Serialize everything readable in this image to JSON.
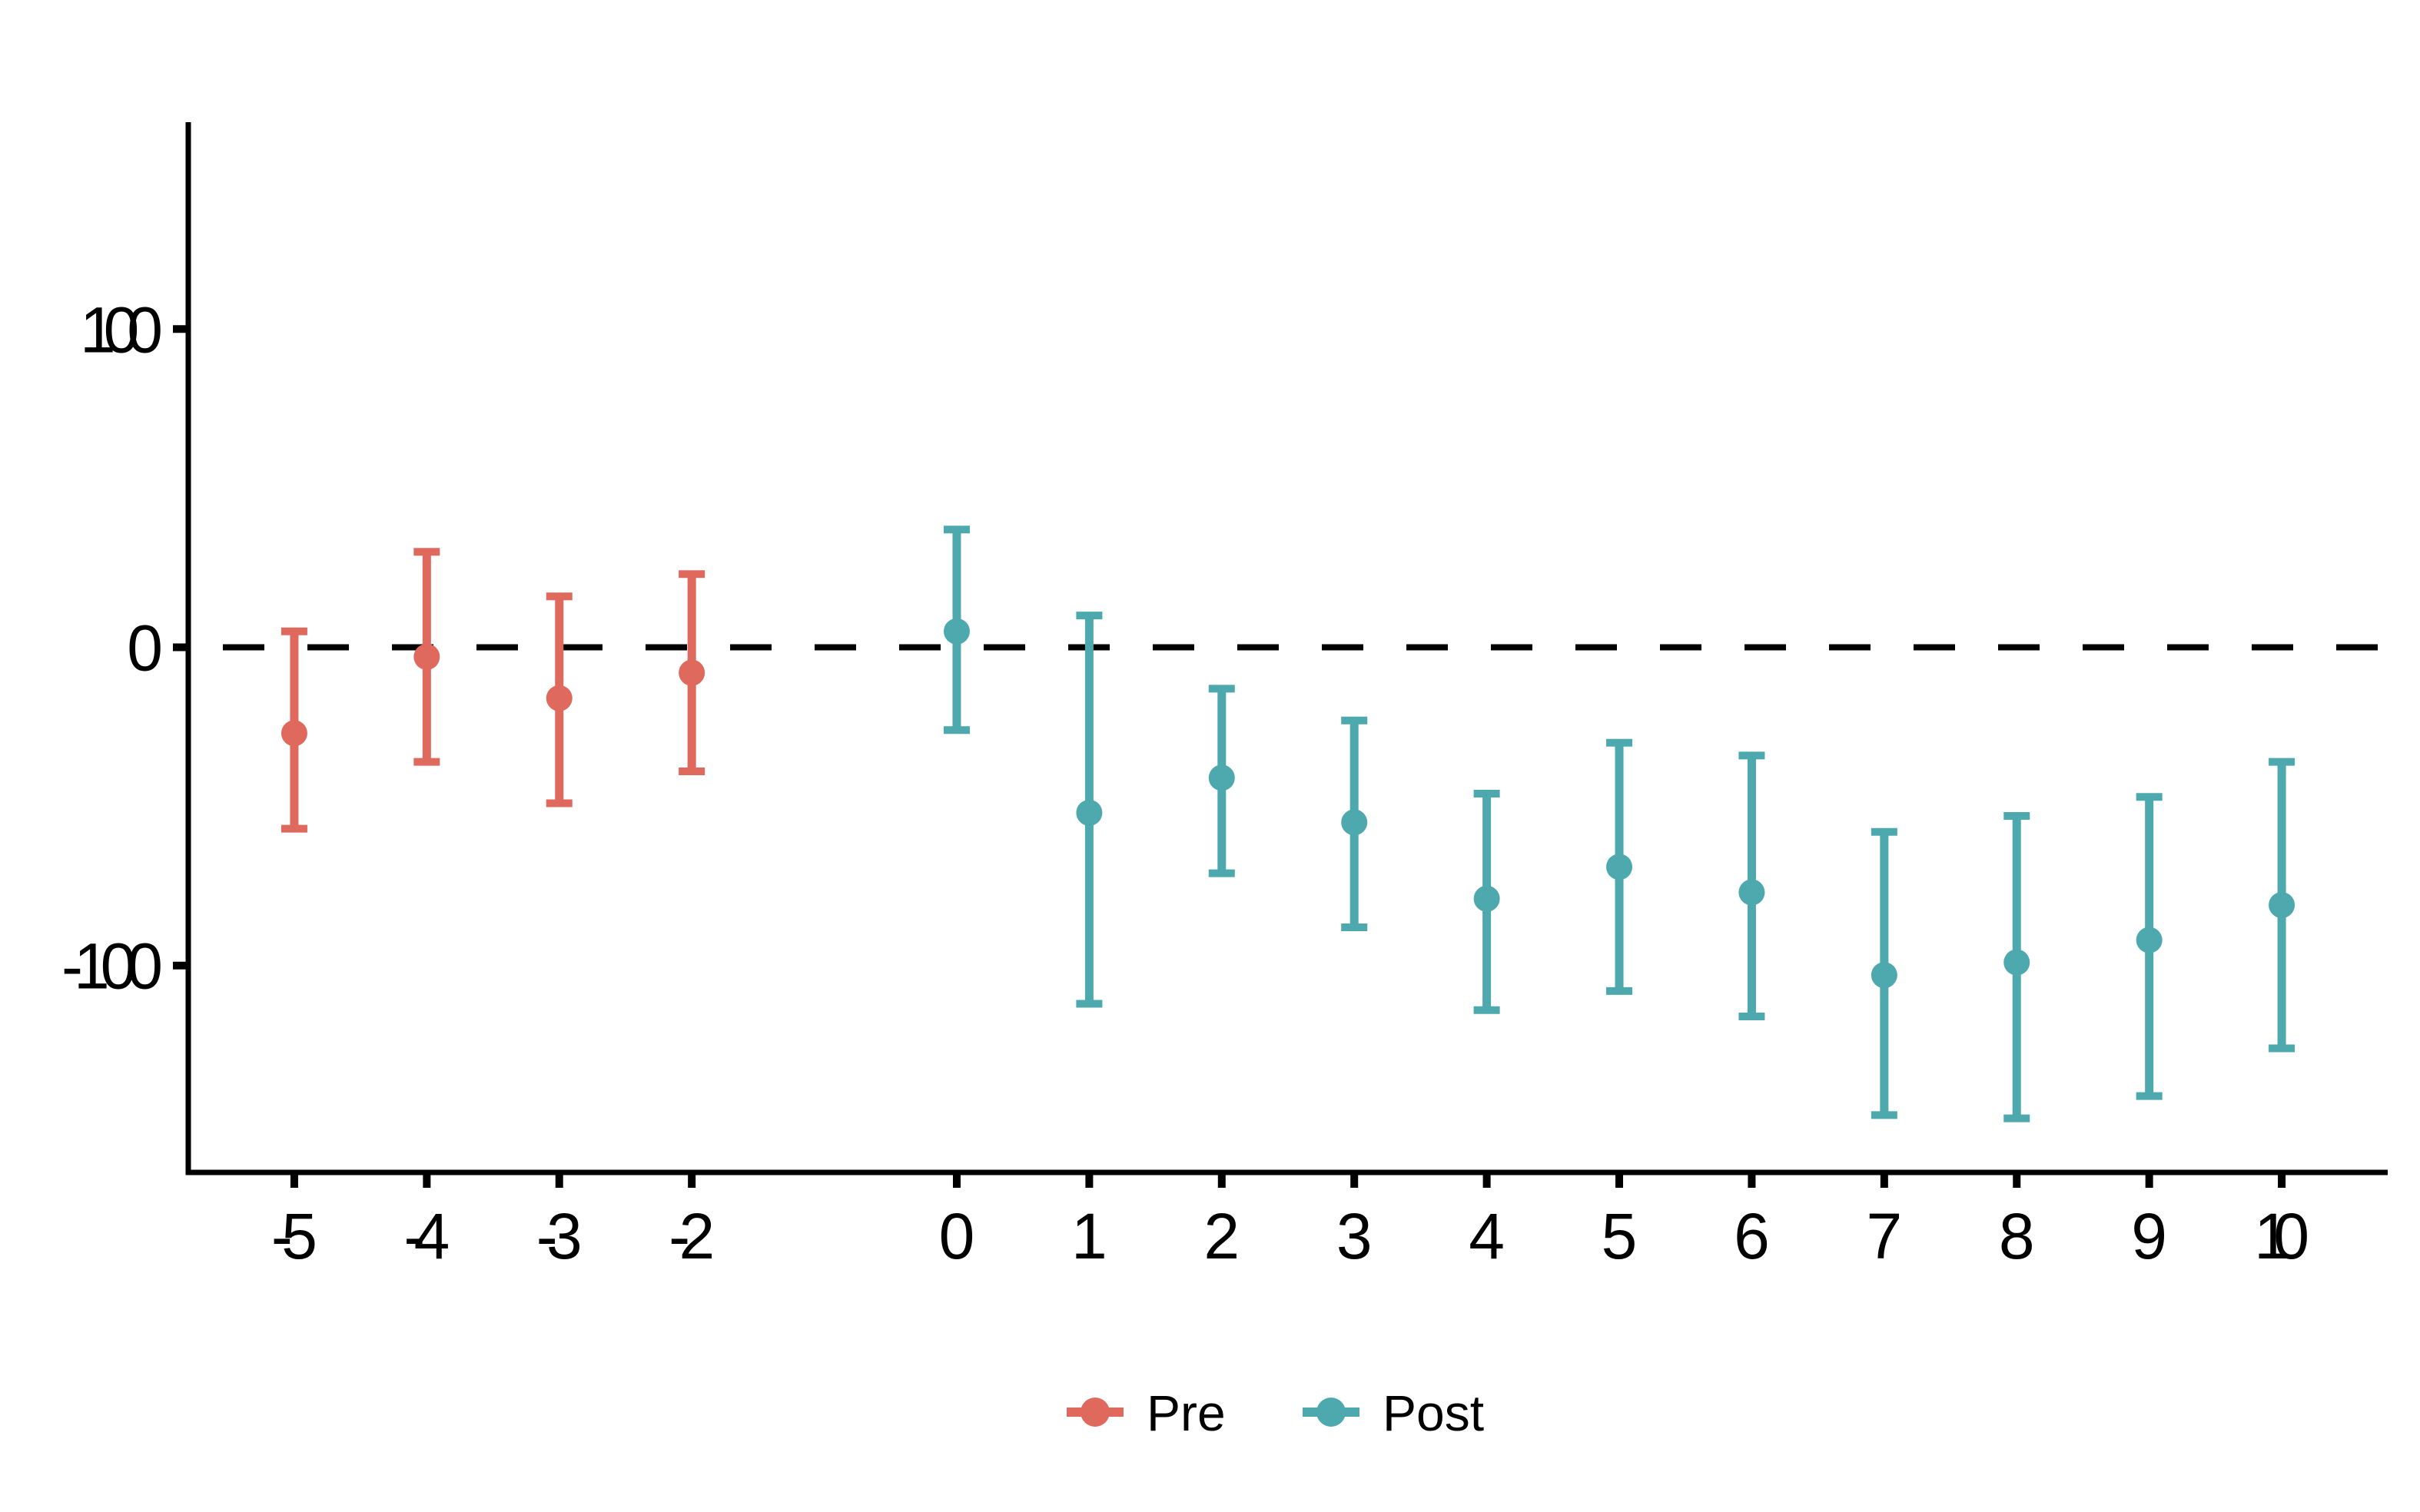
{
  "chart_data": {
    "type": "scatter",
    "subtype": "event-study-errorbar",
    "title": "",
    "xlabel": "",
    "ylabel": "",
    "x_ticks": [
      -5,
      -4,
      -3,
      -2,
      0,
      1,
      2,
      3,
      4,
      5,
      6,
      7,
      8,
      9,
      10
    ],
    "y_ticks": [
      100,
      0,
      -100
    ],
    "xlim": [
      -5.8,
      10.8
    ],
    "ylim": [
      -165,
      165
    ],
    "grid": false,
    "zero_reference_line": {
      "y": 0,
      "style": "dashed",
      "color": "#000000"
    },
    "omitted_reference_period": -1,
    "series": [
      {
        "name": "Pre",
        "color": "#E0695E",
        "points": [
          {
            "x": -5,
            "y": -27,
            "ci_low": -57,
            "ci_high": 5
          },
          {
            "x": -4,
            "y": -3,
            "ci_low": -36,
            "ci_high": 30
          },
          {
            "x": -3,
            "y": -16,
            "ci_low": -49,
            "ci_high": 16
          },
          {
            "x": -2,
            "y": -8,
            "ci_low": -39,
            "ci_high": 23
          }
        ]
      },
      {
        "name": "Post",
        "color": "#4DA9AE",
        "points": [
          {
            "x": 0,
            "y": 5,
            "ci_low": -26,
            "ci_high": 37
          },
          {
            "x": 1,
            "y": -52,
            "ci_low": -112,
            "ci_high": 10
          },
          {
            "x": 2,
            "y": -41,
            "ci_low": -71,
            "ci_high": -13
          },
          {
            "x": 3,
            "y": -55,
            "ci_low": -88,
            "ci_high": -23
          },
          {
            "x": 4,
            "y": -79,
            "ci_low": -114,
            "ci_high": -46
          },
          {
            "x": 5,
            "y": -69,
            "ci_low": -108,
            "ci_high": -30
          },
          {
            "x": 6,
            "y": -77,
            "ci_low": -116,
            "ci_high": -34
          },
          {
            "x": 7,
            "y": -103,
            "ci_low": -147,
            "ci_high": -58
          },
          {
            "x": 8,
            "y": -99,
            "ci_low": -148,
            "ci_high": -53
          },
          {
            "x": 9,
            "y": -92,
            "ci_low": -141,
            "ci_high": -47
          },
          {
            "x": 10,
            "y": -81,
            "ci_low": -126,
            "ci_high": -36
          }
        ]
      }
    ],
    "legend": {
      "position": "bottom-center",
      "items": [
        {
          "label": "Pre",
          "color": "#E0695E"
        },
        {
          "label": "Post",
          "color": "#4DA9AE"
        }
      ]
    },
    "colors": {
      "axis": "#000000",
      "text": "#000000",
      "background": "#FFFFFF"
    }
  }
}
